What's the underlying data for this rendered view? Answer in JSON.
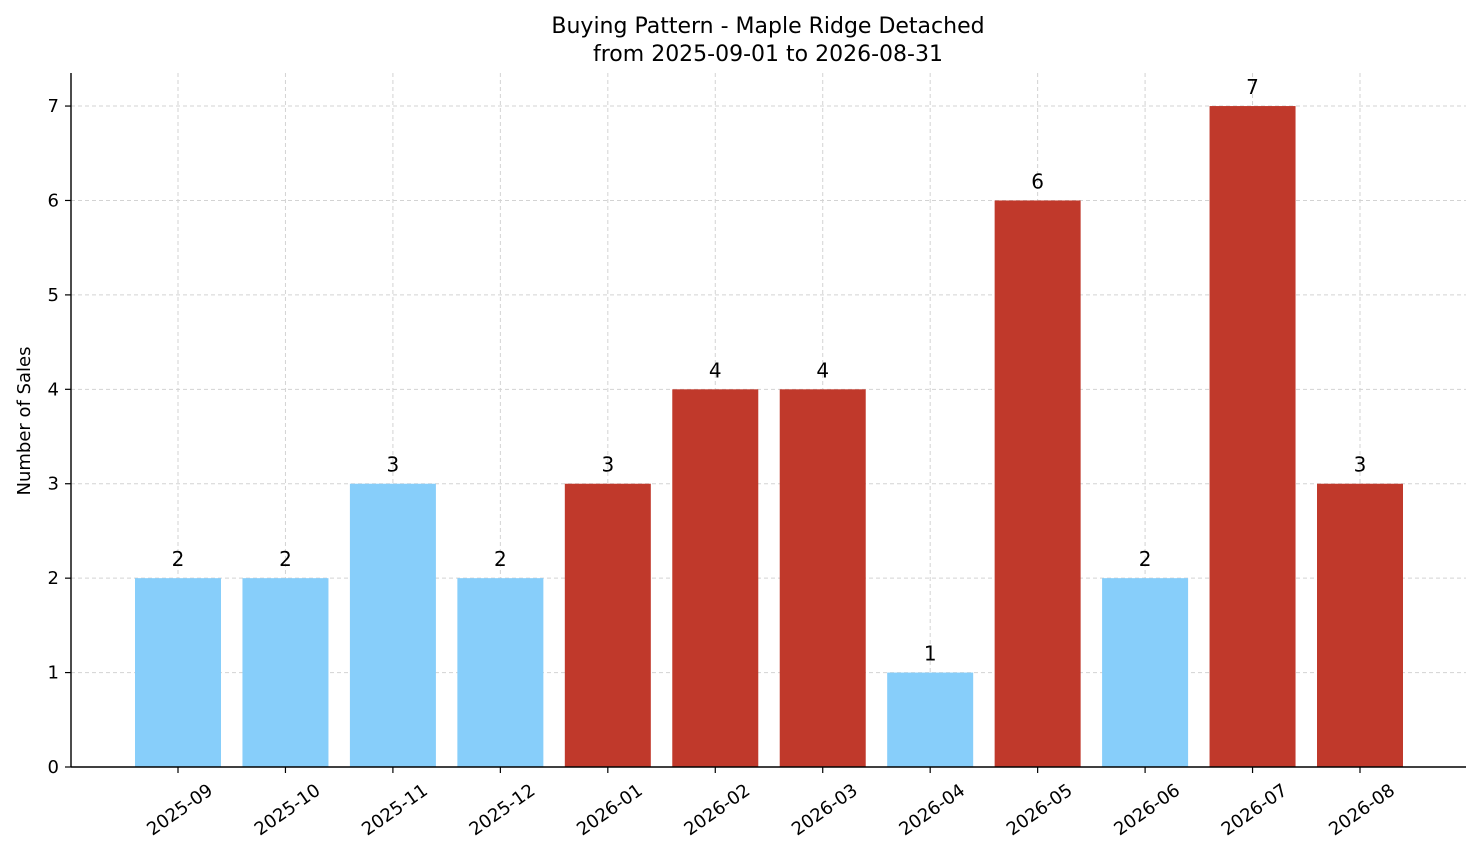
{
  "chart_data": {
    "type": "bar",
    "title": "Buying Pattern - Maple Ridge Detached",
    "subtitle": "from 2025-09-01 to 2026-08-31",
    "xlabel": "",
    "ylabel": "Number of Sales",
    "categories": [
      "2025-09",
      "2025-10",
      "2025-11",
      "2025-12",
      "2026-01",
      "2026-02",
      "2026-03",
      "2026-04",
      "2026-05",
      "2026-06",
      "2026-07",
      "2026-08"
    ],
    "values": [
      2,
      2,
      3,
      2,
      3,
      4,
      4,
      1,
      6,
      2,
      7,
      3
    ],
    "bar_colors": [
      "#87CEFA",
      "#87CEFA",
      "#87CEFA",
      "#87CEFA",
      "#C0392B",
      "#C0392B",
      "#C0392B",
      "#87CEFA",
      "#C0392B",
      "#87CEFA",
      "#C0392B",
      "#C0392B"
    ],
    "ylim": [
      0,
      7.35
    ],
    "yticks": [
      0,
      1,
      2,
      3,
      4,
      5,
      6,
      7
    ],
    "grid": true,
    "legend": "none"
  }
}
